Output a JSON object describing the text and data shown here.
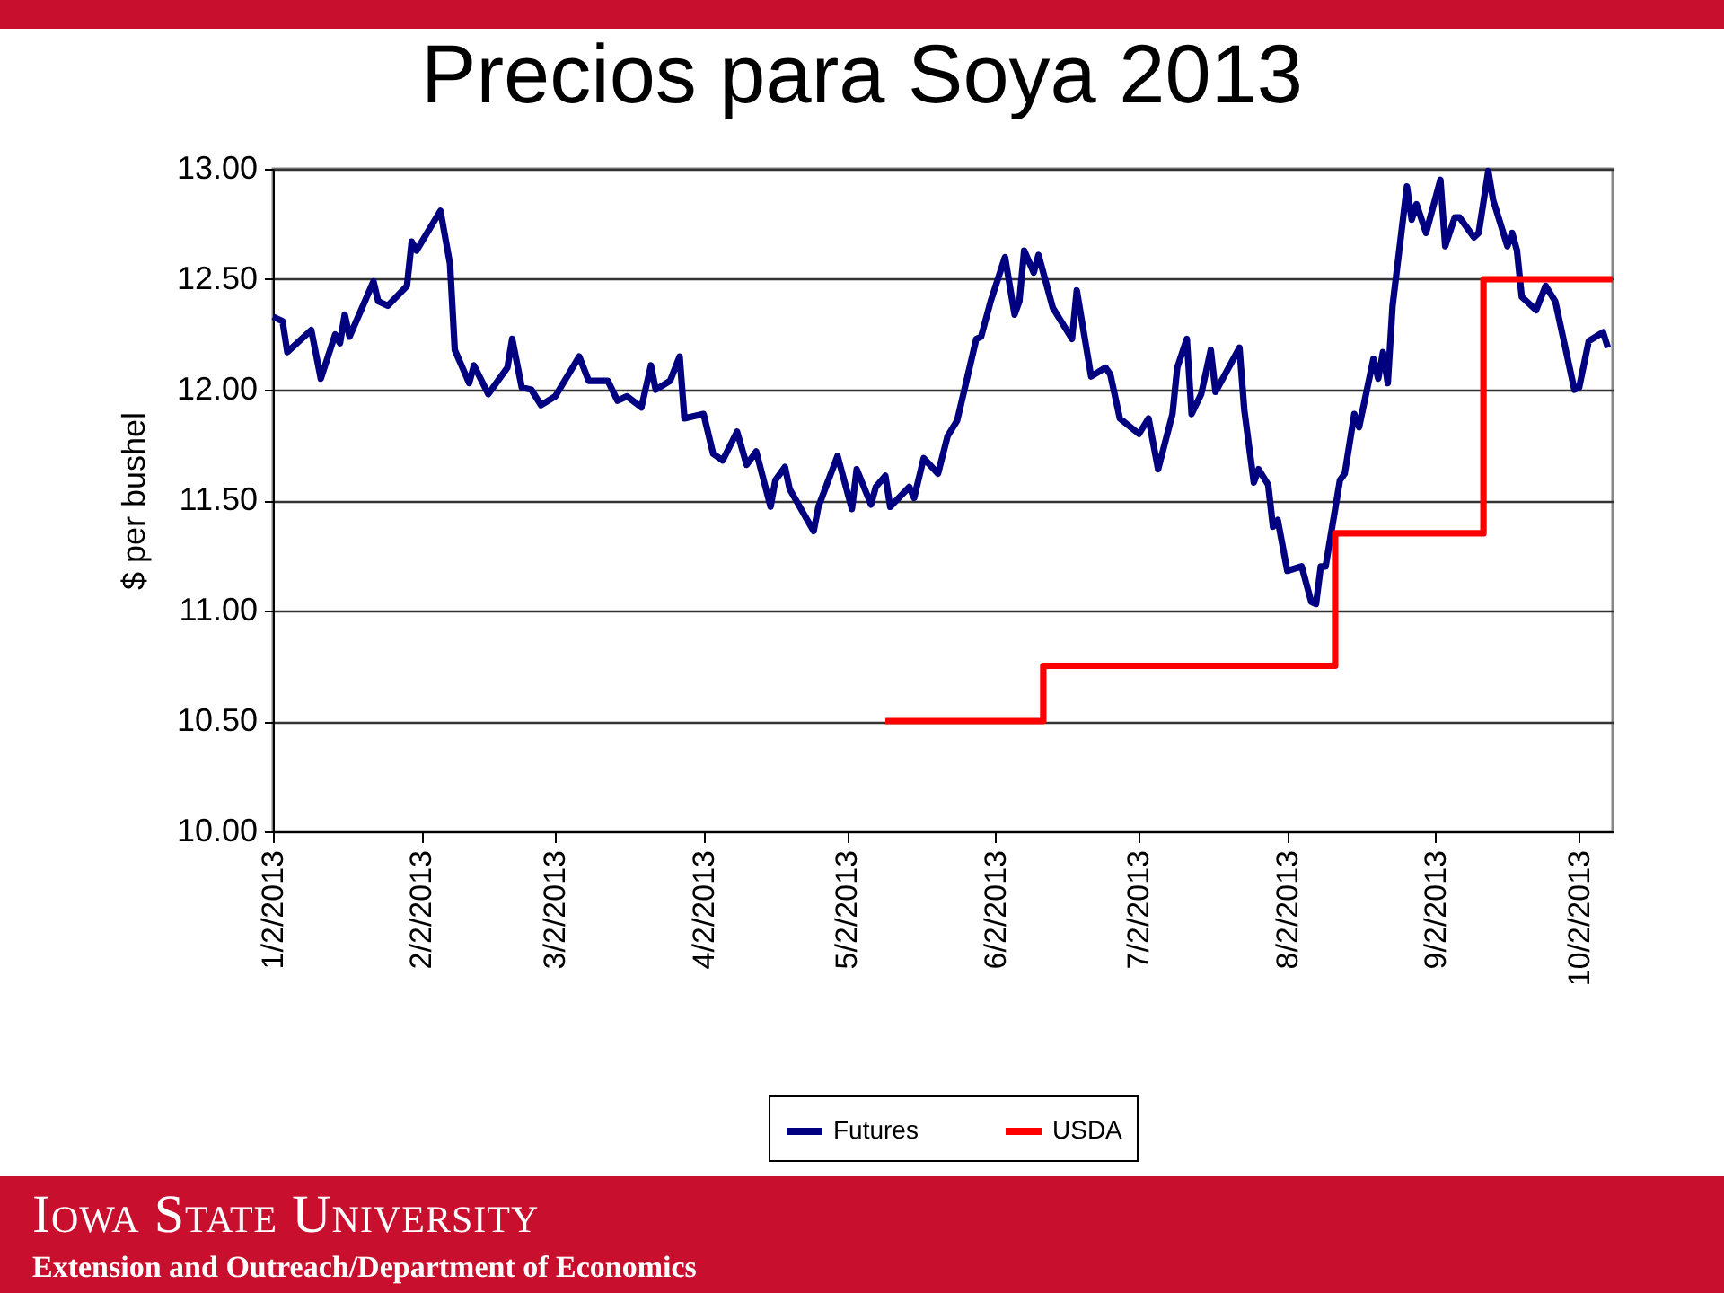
{
  "chart_data": {
    "type": "line",
    "title": "Precios para Soya 2013",
    "ylabel": "$ per bushel",
    "xlim": [
      "2013-01-02",
      "2013-10-09"
    ],
    "xticks": [
      {
        "value": "2013-01-02",
        "label": "1/2/2013"
      },
      {
        "value": "2013-02-02",
        "label": "2/2/2013"
      },
      {
        "value": "2013-03-02",
        "label": "3/2/2013"
      },
      {
        "value": "2013-04-02",
        "label": "4/2/2013"
      },
      {
        "value": "2013-05-02",
        "label": "5/2/2013"
      },
      {
        "value": "2013-06-02",
        "label": "6/2/2013"
      },
      {
        "value": "2013-07-02",
        "label": "7/2/2013"
      },
      {
        "value": "2013-08-02",
        "label": "8/2/2013"
      },
      {
        "value": "2013-09-02",
        "label": "9/2/2013"
      },
      {
        "value": "2013-10-02",
        "label": "10/2/2013"
      }
    ],
    "ylim": [
      10,
      13
    ],
    "yticks": [
      {
        "value": 10,
        "label": "10.00"
      },
      {
        "value": 10.5,
        "label": "10.50"
      },
      {
        "value": 11,
        "label": "11.00"
      },
      {
        "value": 11.5,
        "label": "11.50"
      },
      {
        "value": 12,
        "label": "12.00"
      },
      {
        "value": 12.5,
        "label": "12.50"
      },
      {
        "value": 13,
        "label": "13.00"
      }
    ],
    "grid": "y",
    "legend": "bottom",
    "line_style": "solid",
    "marker": "none",
    "series": [
      {
        "name": "Futures",
        "color": "#000080",
        "x": [
          "2013-01-02",
          "2013-01-04",
          "2013-01-05",
          "2013-01-08",
          "2013-01-10",
          "2013-01-12",
          "2013-01-15",
          "2013-01-16",
          "2013-01-17",
          "2013-01-18",
          "2013-01-23",
          "2013-01-24",
          "2013-01-26",
          "2013-01-30",
          "2013-01-31",
          "2013-02-01",
          "2013-02-06",
          "2013-02-08",
          "2013-02-09",
          "2013-02-12",
          "2013-02-13",
          "2013-02-16",
          "2013-02-20",
          "2013-02-21",
          "2013-02-23",
          "2013-02-25",
          "2013-02-27",
          "2013-03-02",
          "2013-03-07",
          "2013-03-09",
          "2013-03-13",
          "2013-03-15",
          "2013-03-17",
          "2013-03-20",
          "2013-03-22",
          "2013-03-23",
          "2013-03-26",
          "2013-03-28",
          "2013-03-29",
          "2013-04-02",
          "2013-04-04",
          "2013-04-06",
          "2013-04-09",
          "2013-04-11",
          "2013-04-13",
          "2013-04-16",
          "2013-04-17",
          "2013-04-19",
          "2013-04-20",
          "2013-04-25",
          "2013-04-26",
          "2013-04-30",
          "2013-05-03",
          "2013-05-04",
          "2013-05-07",
          "2013-05-08",
          "2013-05-10",
          "2013-05-11",
          "2013-05-15",
          "2013-05-16",
          "2013-05-18",
          "2013-05-21",
          "2013-05-23",
          "2013-05-25",
          "2013-05-29",
          "2013-05-30",
          "2013-06-01",
          "2013-06-04",
          "2013-06-06",
          "2013-06-07",
          "2013-06-08",
          "2013-06-10",
          "2013-06-11",
          "2013-06-14",
          "2013-06-18",
          "2013-06-19",
          "2013-06-22",
          "2013-06-25",
          "2013-06-26",
          "2013-06-28",
          "2013-07-02",
          "2013-07-04",
          "2013-07-06",
          "2013-07-09",
          "2013-07-10",
          "2013-07-12",
          "2013-07-13",
          "2013-07-15",
          "2013-07-17",
          "2013-07-18",
          "2013-07-23",
          "2013-07-24",
          "2013-07-26",
          "2013-07-27",
          "2013-07-29",
          "2013-07-30",
          "2013-07-31",
          "2013-08-02",
          "2013-08-05",
          "2013-08-07",
          "2013-08-08",
          "2013-08-09",
          "2013-08-10",
          "2013-08-13",
          "2013-08-14",
          "2013-08-16",
          "2013-08-17",
          "2013-08-20",
          "2013-08-21",
          "2013-08-22",
          "2013-08-23",
          "2013-08-24",
          "2013-08-27",
          "2013-08-28",
          "2013-08-29",
          "2013-08-31",
          "2013-09-03",
          "2013-09-04",
          "2013-09-06",
          "2013-09-07",
          "2013-09-10",
          "2013-09-11",
          "2013-09-13",
          "2013-09-14",
          "2013-09-17",
          "2013-09-18",
          "2013-09-19",
          "2013-09-20",
          "2013-09-23",
          "2013-09-25",
          "2013-09-27",
          "2013-10-01",
          "2013-10-02",
          "2013-10-04",
          "2013-10-07",
          "2013-10-08"
        ],
        "values": [
          12.33,
          12.31,
          12.17,
          12.23,
          12.27,
          12.05,
          12.25,
          12.21,
          12.34,
          12.24,
          12.49,
          12.4,
          12.38,
          12.47,
          12.67,
          12.63,
          12.81,
          12.57,
          12.18,
          12.03,
          12.11,
          11.98,
          12.1,
          12.23,
          12.01,
          12.0,
          11.93,
          11.97,
          12.15,
          12.04,
          12.04,
          11.95,
          11.97,
          11.92,
          12.11,
          12.0,
          12.04,
          12.15,
          11.87,
          11.89,
          11.71,
          11.68,
          11.81,
          11.66,
          11.72,
          11.47,
          11.59,
          11.65,
          11.55,
          11.36,
          11.47,
          11.7,
          11.46,
          11.64,
          11.48,
          11.56,
          11.61,
          11.47,
          11.56,
          11.51,
          11.69,
          11.62,
          11.79,
          11.86,
          12.23,
          12.24,
          12.4,
          12.6,
          12.34,
          12.4,
          12.63,
          12.53,
          12.61,
          12.37,
          12.23,
          12.45,
          12.06,
          12.1,
          12.07,
          11.87,
          11.8,
          11.87,
          11.64,
          11.89,
          12.1,
          12.23,
          11.89,
          11.98,
          12.18,
          11.99,
          12.19,
          11.91,
          11.58,
          11.64,
          11.57,
          11.38,
          11.41,
          11.18,
          11.2,
          11.04,
          11.03,
          11.2,
          11.2,
          11.59,
          11.62,
          11.89,
          11.83,
          12.14,
          12.05,
          12.17,
          12.03,
          12.38,
          12.92,
          12.77,
          12.84,
          12.71,
          12.95,
          12.65,
          12.78,
          12.78,
          12.69,
          12.71,
          12.99,
          12.86,
          12.65,
          12.71,
          12.63,
          12.42,
          12.36,
          12.47,
          12.4,
          12.0,
          12.01,
          12.22,
          12.26,
          12.19
        ]
      },
      {
        "name": "USDA",
        "color": "#ff0000",
        "type": "step",
        "x": [
          "2013-05-10",
          "2013-06-12",
          "2013-08-12",
          "2013-09-12",
          "2013-10-09"
        ],
        "values": [
          10.5,
          10.75,
          11.35,
          12.5,
          12.5
        ]
      }
    ],
    "annotations": [
      "Iowa State University",
      "Extension and Outreach/Department of Economics"
    ]
  }
}
